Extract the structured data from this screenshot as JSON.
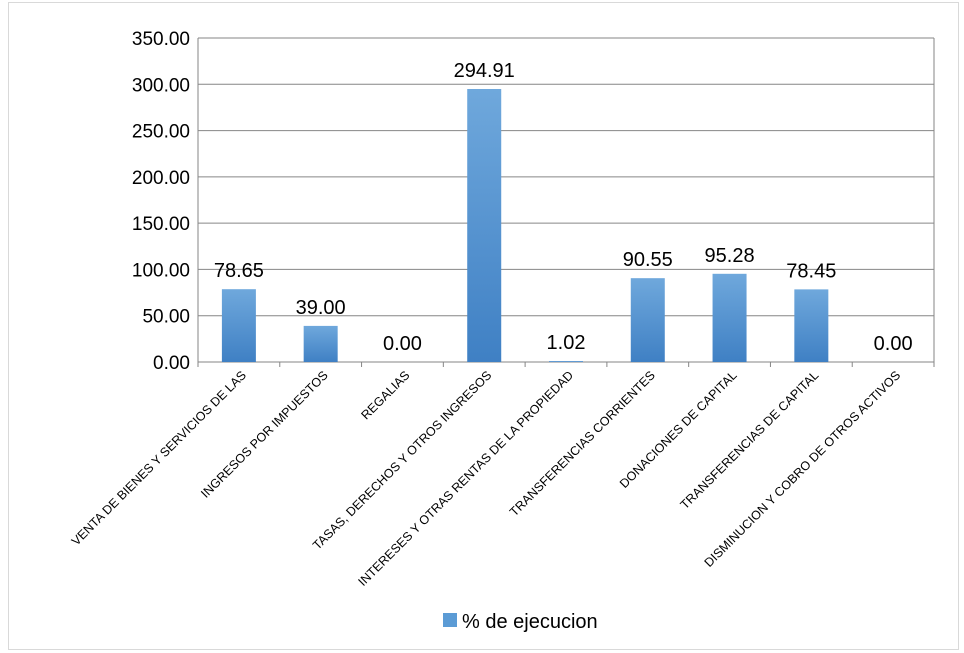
{
  "chart_data": {
    "type": "bar",
    "categories": [
      "VENTA DE BIENES Y SERVICIOS DE LAS",
      "INGRESOS POR IMPUESTOS",
      "REGALIAS",
      "TASAS, DERECHOS Y OTROS INGRESOS",
      "INTERESES Y OTRAS RENTAS DE LA PROPIEDAD",
      "TRANSFERENCIAS CORRIENTES",
      "DONACIONES DE CAPITAL",
      "TRANSFERENCIAS DE CAPITAL",
      "DISMINUCION Y COBRO DE OTROS ACTIVOS"
    ],
    "series": [
      {
        "name": "% de ejecucion",
        "values": [
          78.65,
          39.0,
          0.0,
          294.91,
          1.02,
          90.55,
          95.28,
          78.45,
          0.0
        ],
        "data_labels": [
          "78.65",
          "39.00",
          "0.00",
          "294.91",
          "1.02",
          "90.55",
          "95.28",
          "78.45",
          "0.00"
        ],
        "color": "#5b9bd5"
      }
    ],
    "ylim": [
      0,
      350
    ],
    "yticks": [
      "0.00",
      "50.00",
      "100.00",
      "150.00",
      "200.00",
      "250.00",
      "300.00",
      "350.00"
    ],
    "grid": true,
    "legend": "bottom",
    "colors": {
      "bar_top": "#6fa8dc",
      "bar_bottom": "#3f80c4",
      "grid": "#868686"
    }
  }
}
